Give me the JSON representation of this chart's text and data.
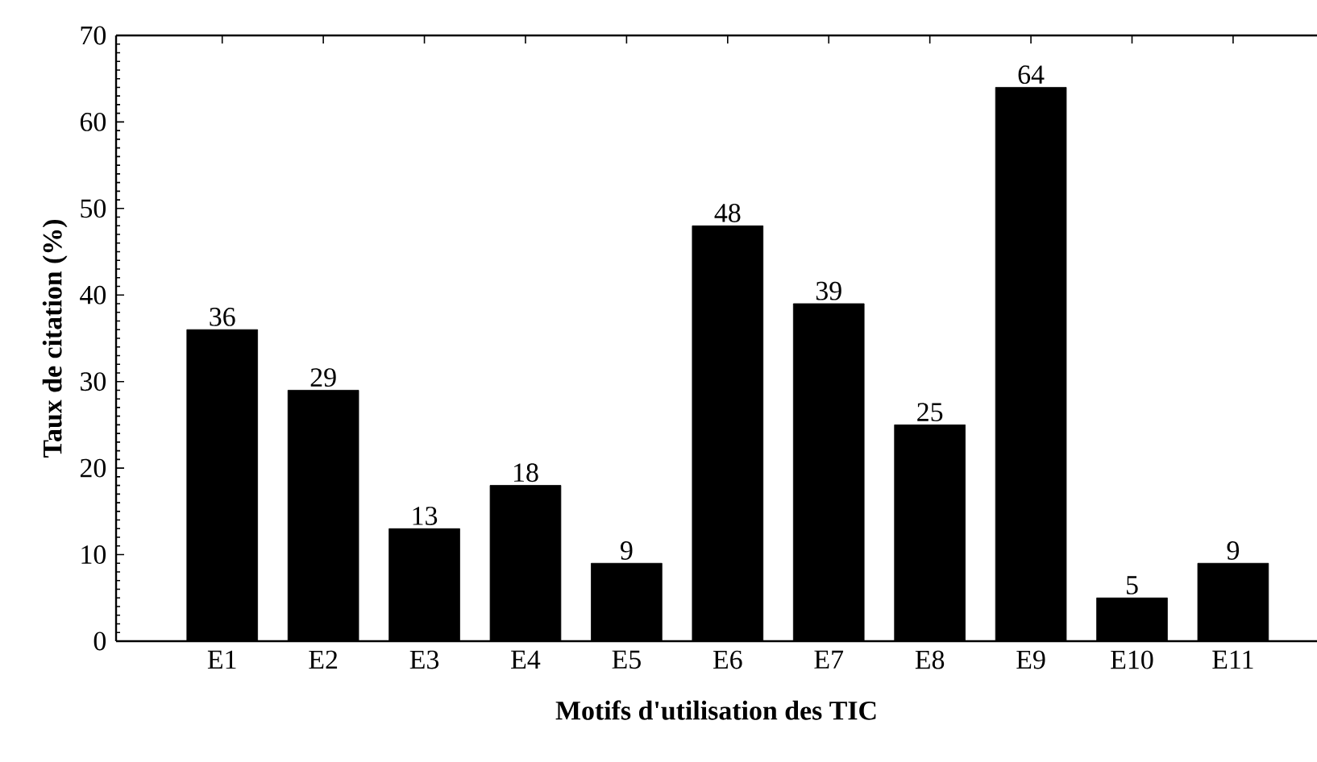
{
  "chart_data": {
    "type": "bar",
    "xlabel": "Motifs d'utilisation des TIC",
    "ylabel": "Taux de citation (%)",
    "categories": [
      "E1",
      "E2",
      "E3",
      "E4",
      "E5",
      "E6",
      "E7",
      "E8",
      "E9",
      "E10",
      "E11"
    ],
    "values": [
      36,
      29,
      13,
      18,
      9,
      48,
      39,
      25,
      64,
      5,
      9
    ],
    "color": "#000000",
    "ylim": [
      0,
      70
    ],
    "yticks": [
      0,
      10,
      20,
      30,
      40,
      50,
      60,
      70
    ],
    "data_labels": true
  }
}
